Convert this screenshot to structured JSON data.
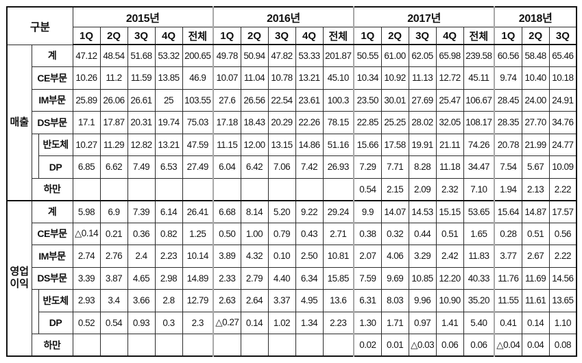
{
  "colors": {
    "border_thin": "#2b2b2b",
    "border_thick": "#111111",
    "year_separator_gray": "#a8a8a8",
    "background": "#ffffff",
    "text": "#151515"
  },
  "header": {
    "corner_label": "구분",
    "years": [
      {
        "label": "2015년",
        "quarters": [
          "1Q",
          "2Q",
          "3Q",
          "4Q",
          "전체"
        ]
      },
      {
        "label": "2016년",
        "quarters": [
          "1Q",
          "2Q",
          "3Q",
          "4Q",
          "전체"
        ]
      },
      {
        "label": "2017년",
        "quarters": [
          "1Q",
          "2Q",
          "3Q",
          "4Q",
          "전체"
        ]
      },
      {
        "label": "2018년",
        "quarters": [
          "1Q",
          "2Q",
          "3Q"
        ]
      }
    ]
  },
  "sections": [
    {
      "group_label": "매출",
      "rows": [
        {
          "label": "계",
          "indent": false,
          "values": [
            "47.12",
            "48.54",
            "51.68",
            "53.32",
            "200.65",
            "49.78",
            "50.94",
            "47.82",
            "53.33",
            "201.87",
            "50.55",
            "61.00",
            "62.05",
            "65.98",
            "239.58",
            "60.56",
            "58.48",
            "65.46"
          ]
        },
        {
          "label": "CE부문",
          "indent": false,
          "values": [
            "10.26",
            "11.2",
            "11.59",
            "13.85",
            "46.9",
            "10.07",
            "11.04",
            "10.78",
            "13.21",
            "45.10",
            "10.34",
            "10.92",
            "11.13",
            "12.72",
            "45.11",
            "9.74",
            "10.40",
            "10.18"
          ]
        },
        {
          "label": "IM부문",
          "indent": false,
          "values": [
            "25.89",
            "26.06",
            "26.61",
            "25",
            "103.55",
            "27.6",
            "26.56",
            "22.54",
            "23.61",
            "100.3",
            "23.50",
            "30.01",
            "27.69",
            "25.47",
            "106.67",
            "28.45",
            "24.00",
            "24.91"
          ]
        },
        {
          "label": "DS부문",
          "indent": false,
          "values": [
            "17.1",
            "17.87",
            "20.31",
            "19.74",
            "75.03",
            "17.18",
            "18.43",
            "20.29",
            "22.26",
            "78.15",
            "22.85",
            "25.25",
            "28.02",
            "32.05",
            "108.17",
            "28.35",
            "27.70",
            "34.76"
          ]
        },
        {
          "label": "반도체",
          "indent": true,
          "values": [
            "10.27",
            "11.29",
            "12.82",
            "13.21",
            "47.59",
            "11.15",
            "12.00",
            "13.15",
            "14.86",
            "51.16",
            "15.66",
            "17.58",
            "19.91",
            "21.11",
            "74.26",
            "20.78",
            "21.99",
            "24.77"
          ]
        },
        {
          "label": "DP",
          "indent": true,
          "values": [
            "6.85",
            "6.62",
            "7.49",
            "6.53",
            "27.49",
            "6.04",
            "6.42",
            "7.06",
            "7.42",
            "26.93",
            "7.29",
            "7.71",
            "8.28",
            "11.18",
            "34.47",
            "7.54",
            "5.67",
            "10.09"
          ]
        },
        {
          "label": "하만",
          "indent": false,
          "values": [
            "",
            "",
            "",
            "",
            "",
            "",
            "",
            "",
            "",
            "",
            "0.54",
            "2.15",
            "2.09",
            "2.32",
            "7.10",
            "1.94",
            "2.13",
            "2.22"
          ]
        }
      ]
    },
    {
      "group_label": "영업이익",
      "rows": [
        {
          "label": "계",
          "indent": false,
          "values": [
            "5.98",
            "6.9",
            "7.39",
            "6.14",
            "26.41",
            "6.68",
            "8.14",
            "5.20",
            "9.22",
            "29.24",
            "9.9",
            "14.07",
            "14.53",
            "15.15",
            "53.65",
            "15.64",
            "14.87",
            "17.57"
          ]
        },
        {
          "label": "CE부문",
          "indent": false,
          "values": [
            "△0.14",
            "0.21",
            "0.36",
            "0.82",
            "1.25",
            "0.50",
            "1.00",
            "0.79",
            "0.43",
            "2.71",
            "0.38",
            "0.32",
            "0.44",
            "0.51",
            "1.65",
            "0.28",
            "0.51",
            "0.56"
          ]
        },
        {
          "label": "IM부문",
          "indent": false,
          "values": [
            "2.74",
            "2.76",
            "2.4",
            "2.23",
            "10.14",
            "3.89",
            "4.32",
            "0.10",
            "2.50",
            "10.81",
            "2.07",
            "4.06",
            "3.29",
            "2.42",
            "11.83",
            "3.77",
            "2.67",
            "2.22"
          ]
        },
        {
          "label": "DS부문",
          "indent": false,
          "values": [
            "3.39",
            "3.87",
            "4.65",
            "2.98",
            "14.89",
            "2.33",
            "2.79",
            "4.40",
            "6.34",
            "15.85",
            "7.59",
            "9.69",
            "10.85",
            "12.20",
            "40.33",
            "11.76",
            "11.69",
            "14.56"
          ]
        },
        {
          "label": "반도체",
          "indent": true,
          "values": [
            "2.93",
            "3.4",
            "3.66",
            "2.8",
            "12.79",
            "2.63",
            "2.64",
            "3.37",
            "4.95",
            "13.6",
            "6.31",
            "8.03",
            "9.96",
            "10.90",
            "35.20",
            "11.55",
            "11.61",
            "13.65"
          ]
        },
        {
          "label": "DP",
          "indent": true,
          "values": [
            "0.52",
            "0.54",
            "0.93",
            "0.3",
            "2.3",
            "△0.27",
            "0.14",
            "1.02",
            "1.34",
            "2.23",
            "1.30",
            "1.71",
            "0.97",
            "1.41",
            "5.40",
            "0.41",
            "0.14",
            "1.10"
          ]
        },
        {
          "label": "하만",
          "indent": false,
          "values": [
            "",
            "",
            "",
            "",
            "",
            "",
            "",
            "",
            "",
            "",
            "0.02",
            "0.01",
            "△0.03",
            "0.06",
            "0.06",
            "△0.04",
            "0.04",
            "0.08"
          ]
        }
      ]
    }
  ]
}
